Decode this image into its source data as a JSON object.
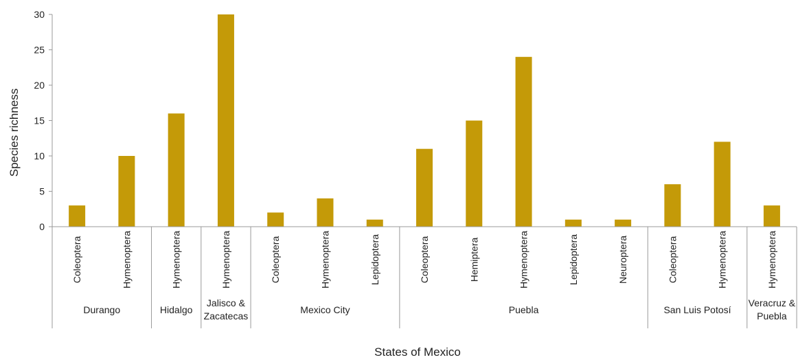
{
  "chart_data": {
    "type": "bar",
    "title": "",
    "xlabel": "States of Mexico",
    "ylabel": "Species richness",
    "ylim": [
      0,
      30
    ],
    "yticks": [
      0,
      5,
      10,
      15,
      20,
      25,
      30
    ],
    "grid": false,
    "bar_color": "#C49A08",
    "groups": [
      {
        "name": "Durango",
        "categories": [
          "Coleoptera",
          "Hymenoptera"
        ],
        "values": [
          3,
          10
        ]
      },
      {
        "name": "Hidalgo",
        "categories": [
          "Hymenoptera"
        ],
        "values": [
          16
        ]
      },
      {
        "name": "Jalisco & Zacatecas",
        "categories": [
          "Hymenoptera"
        ],
        "values": [
          30
        ]
      },
      {
        "name": "Mexico City",
        "categories": [
          "Coleoptera",
          "Hymenoptera",
          "Lepidoptera"
        ],
        "values": [
          2,
          4,
          1
        ]
      },
      {
        "name": "Puebla",
        "categories": [
          "Coleoptera",
          "Hemiptera",
          "Hymenoptera",
          "Lepidoptera",
          "Neuroptera"
        ],
        "values": [
          11,
          15,
          24,
          1,
          1
        ]
      },
      {
        "name": "San Luis Potosí",
        "categories": [
          "Coleoptera",
          "Hymenoptera"
        ],
        "values": [
          6,
          12
        ]
      },
      {
        "name": "Veracruz & Puebla",
        "categories": [
          "Hymenoptera"
        ],
        "values": [
          3
        ]
      }
    ]
  }
}
